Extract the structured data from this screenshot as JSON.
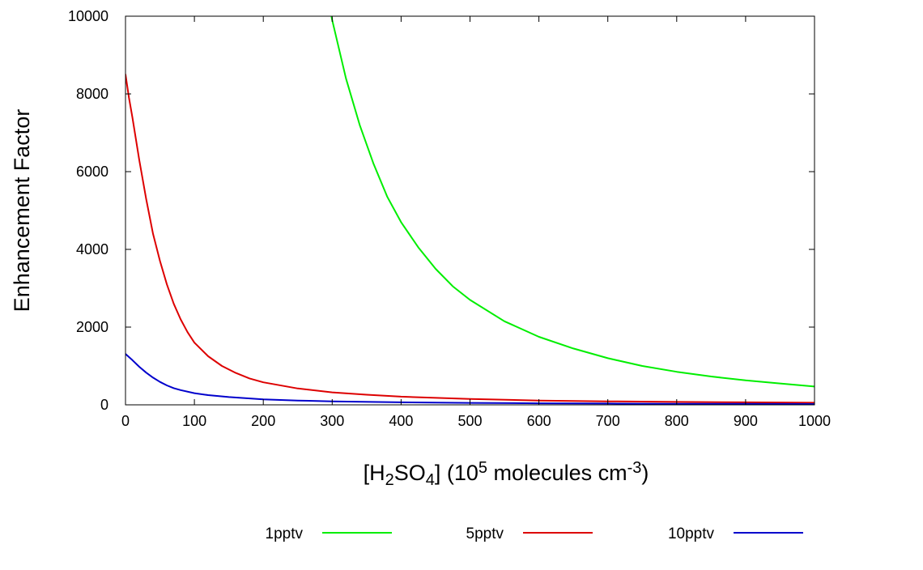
{
  "chart_data": {
    "type": "line",
    "title": "",
    "xlabel": {
      "parts": [
        {
          "text": "[H",
          "style": "normal"
        },
        {
          "text": "2",
          "style": "sub"
        },
        {
          "text": "SO",
          "style": "normal"
        },
        {
          "text": "4",
          "style": "sub"
        },
        {
          "text": "] (10",
          "style": "normal"
        },
        {
          "text": "5",
          "style": "sup"
        },
        {
          "text": " molecules cm",
          "style": "normal"
        },
        {
          "text": "-3",
          "style": "sup"
        },
        {
          "text": ")",
          "style": "normal"
        }
      ]
    },
    "ylabel": "Enhancement Factor",
    "xlim": [
      0,
      1000
    ],
    "ylim": [
      0,
      10000
    ],
    "x_ticks": [
      0,
      100,
      200,
      300,
      400,
      500,
      600,
      700,
      800,
      900,
      1000
    ],
    "x_tick_labels": [
      "0",
      "100",
      "200",
      "300",
      "400",
      "500",
      "600",
      "700",
      "800",
      "900",
      "1000"
    ],
    "y_ticks": [
      0,
      2000,
      4000,
      6000,
      8000,
      10000
    ],
    "y_tick_labels": [
      "0",
      "2000",
      "4000",
      "6000",
      "8000",
      "10000"
    ],
    "grid": false,
    "legend_position": "bottom",
    "series": [
      {
        "name": "1pptv",
        "color": "#00ee00",
        "x": [
          290,
          300,
          320,
          340,
          360,
          380,
          400,
          425,
          450,
          475,
          500,
          550,
          600,
          650,
          700,
          750,
          800,
          850,
          900,
          950,
          1000
        ],
        "y": [
          10800,
          9900,
          8400,
          7200,
          6200,
          5350,
          4700,
          4050,
          3500,
          3050,
          2700,
          2150,
          1750,
          1450,
          1200,
          1000,
          850,
          730,
          630,
          550,
          470
        ]
      },
      {
        "name": "5pptv",
        "color": "#dd0000",
        "x": [
          0,
          5,
          10,
          20,
          30,
          40,
          50,
          60,
          70,
          80,
          90,
          100,
          120,
          140,
          160,
          180,
          200,
          250,
          300,
          350,
          400,
          500,
          600,
          700,
          800,
          900,
          1000
        ],
        "y": [
          8500,
          7900,
          7400,
          6300,
          5300,
          4400,
          3700,
          3100,
          2600,
          2200,
          1870,
          1600,
          1250,
          1000,
          820,
          680,
          580,
          420,
          320,
          260,
          210,
          150,
          110,
          90,
          75,
          65,
          55
        ]
      },
      {
        "name": "10pptv",
        "color": "#0000cc",
        "x": [
          0,
          10,
          20,
          30,
          40,
          50,
          60,
          70,
          80,
          100,
          120,
          150,
          200,
          250,
          300,
          400,
          500,
          600,
          700,
          800,
          900,
          1000
        ],
        "y": [
          1310,
          1150,
          980,
          830,
          700,
          590,
          500,
          430,
          380,
          300,
          250,
          200,
          140,
          110,
          90,
          65,
          50,
          40,
          33,
          28,
          24,
          20
        ]
      }
    ]
  }
}
